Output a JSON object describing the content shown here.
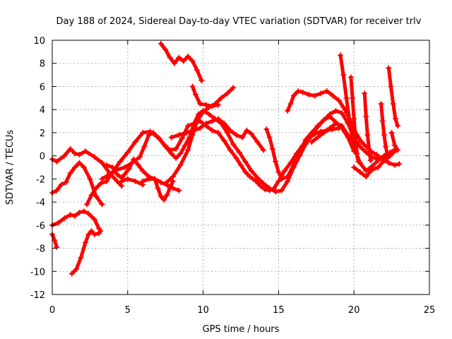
{
  "chart_data": {
    "type": "scatter",
    "title": "Day 188 of 2024, Sidereal Day-to-day VTEC variation (SDTVAR) for receiver trlv",
    "xlabel": "GPS time / hours",
    "ylabel": "SDTVAR / TECUs",
    "xlim": [
      0,
      25
    ],
    "ylim": [
      -12,
      10
    ],
    "xticks": [
      0,
      5,
      10,
      15,
      20,
      25
    ],
    "yticks": [
      -12,
      -10,
      -8,
      -6,
      -4,
      -2,
      0,
      2,
      4,
      6,
      8,
      10
    ],
    "grid": true,
    "marker": "plus",
    "color": "#ff0000",
    "series": [
      {
        "x": [
          0,
          0.3,
          0.8,
          1.2,
          1.5,
          1.8,
          2.2,
          2.8,
          3.3,
          3.8,
          4.3,
          4.6
        ],
        "y": [
          -0.3,
          -0.5,
          0,
          0.6,
          0.2,
          0.1,
          0.4,
          -0.1,
          -0.6,
          -1.5,
          -2.2,
          -2.6
        ]
      },
      {
        "x": [
          0,
          0.3,
          0.6,
          0.9,
          1.2,
          1.5,
          1.8,
          2.1,
          2.5,
          2.9,
          3.3
        ],
        "y": [
          -3.2,
          -3,
          -2.5,
          -2.3,
          -1.5,
          -1,
          -0.6,
          -1,
          -2,
          -3.5,
          -4.2
        ]
      },
      {
        "x": [
          0,
          0.4,
          0.8,
          1.2,
          1.5,
          1.8,
          2.1,
          2.4,
          2.8,
          3.1
        ],
        "y": [
          -6,
          -5.8,
          -5.4,
          -5.1,
          -5.2,
          -4.9,
          -4.8,
          -5,
          -5.5,
          -6.3
        ]
      },
      {
        "x": [
          0,
          0.15,
          0.3
        ],
        "y": [
          -6.8,
          -7.3,
          -7.9
        ]
      },
      {
        "x": [
          1.3,
          1.6,
          1.9,
          2.2,
          2.4,
          2.6,
          2.8,
          3.1,
          3.2
        ],
        "y": [
          -10.2,
          -9.8,
          -8.8,
          -7.5,
          -6.8,
          -6.5,
          -6.8,
          -6.7,
          -6.5
        ]
      },
      {
        "x": [
          2.3,
          2.6,
          2.9,
          3.2,
          3.6,
          4.0,
          4.5,
          5.0,
          5.5,
          6.0,
          6.5,
          7.0,
          7.4,
          7.8,
          8.2,
          8.6,
          9.0,
          9.4,
          9.8,
          10.2,
          10.6,
          11.0,
          11.4,
          11.8,
          12.2,
          12.5,
          12.8,
          13.1,
          13.5,
          13.8,
          14.1,
          14.4,
          14.7,
          15.0,
          15.4,
          15.8,
          16.2,
          16.6,
          17.0,
          17.4,
          17.8,
          18.2,
          18.6,
          19.0
        ],
        "y": [
          -4.2,
          -3.4,
          -2.8,
          -2.4,
          -2.2,
          -1.4,
          -0.5,
          0.3,
          1.2,
          2.0,
          2.1,
          1.6,
          1.0,
          0.5,
          0.6,
          1.5,
          2.6,
          2.8,
          3.0,
          2.6,
          2.2,
          2.0,
          1.3,
          0.5,
          -0.2,
          -0.8,
          -1.4,
          -1.8,
          -2.2,
          -2.6,
          -2.9,
          -3.0,
          -2.8,
          -2.2,
          -1.3,
          -0.6,
          0.2,
          0.9,
          1.5,
          1.9,
          2.1,
          2.2,
          2.3,
          2.4
        ]
      },
      {
        "x": [
          3.3,
          3.8,
          4.3,
          4.8,
          5.3,
          5.8,
          6.1,
          6.4,
          6.7,
          7.1,
          7.5,
          7.9,
          8.2,
          8.5,
          8.8,
          9.1,
          9.4,
          9.7,
          10.0,
          10.4,
          10.8,
          11.2,
          11.6,
          12.0,
          12.4,
          12.8,
          13.2,
          13.6,
          14.0,
          14.4,
          14.8,
          15.2,
          15.6,
          16.0,
          16.4,
          16.8,
          17.2,
          17.6,
          18.0,
          18.4,
          18.8,
          19.2,
          19.6,
          20.0,
          20.4,
          20.8,
          21.2,
          21.6,
          22.0,
          22.4,
          22.8
        ],
        "y": [
          -2.0,
          -1.6,
          -1.2,
          -1.0,
          -0.6,
          -0.1,
          0.8,
          1.8,
          2.0,
          1.5,
          0.8,
          0.2,
          -0.2,
          0.2,
          0.9,
          1.6,
          2.8,
          3.6,
          3.9,
          3.6,
          3.2,
          2.8,
          2.0,
          1.0,
          0.3,
          -0.5,
          -1.3,
          -1.9,
          -2.4,
          -2.8,
          -3.1,
          -3.0,
          -2.2,
          -1.0,
          0.0,
          1.0,
          1.8,
          2.5,
          3.1,
          3.6,
          3.9,
          3.7,
          2.8,
          1.6,
          0.8,
          0.3,
          -0.1,
          -0.3,
          0.0,
          0.3,
          0.6
        ]
      },
      {
        "x": [
          3.6,
          4.0,
          4.3,
          4.6,
          4.8,
          5.1,
          5.4,
          5.7,
          6.0,
          6.4,
          6.8,
          7.2,
          7.6,
          8.0,
          8.4
        ],
        "y": [
          -0.8,
          -1.0,
          -1.6,
          -1.9,
          -1.6,
          -1.1,
          -0.3,
          -0.8,
          -1.3,
          -1.8,
          -2.0,
          -2.3,
          -2.5,
          -2.8,
          -3.0
        ]
      },
      {
        "x": [
          4.6,
          5.0,
          5.5,
          6.0
        ],
        "y": [
          -2.2,
          -2.0,
          -2.2,
          -2.5
        ]
      },
      {
        "x": [
          6.0,
          6.4,
          6.8,
          7.0,
          7.2,
          7.4,
          7.6,
          7.8,
          8.0
        ],
        "y": [
          -2.2,
          -2.0,
          -2.0,
          -2.8,
          -3.5,
          -3.8,
          -3.4,
          -2.8,
          -2.2
        ]
      },
      {
        "x": [
          7.5,
          8.0,
          8.5,
          9.0,
          9.3,
          9.6,
          10.0,
          10.4,
          10.8,
          11.2,
          11.6,
          12.0
        ],
        "y": [
          -2.4,
          -1.8,
          -0.8,
          0.5,
          1.8,
          3.0,
          3.8,
          4.2,
          4.5,
          5.0,
          5.4,
          5.9
        ]
      },
      {
        "x": [
          7.2,
          7.5,
          7.8,
          8.1,
          8.4,
          8.7,
          9.0,
          9.3,
          9.6,
          9.9
        ],
        "y": [
          9.7,
          9.2,
          8.5,
          8.0,
          8.5,
          8.2,
          8.6,
          8.2,
          7.4,
          6.5
        ]
      },
      {
        "x": [
          9.3,
          9.5,
          9.8,
          10.2,
          10.6,
          11.0
        ],
        "y": [
          6.0,
          5.3,
          4.5,
          4.4,
          4.3,
          4.4
        ]
      },
      {
        "x": [
          7.9,
          8.4,
          8.9,
          9.4,
          9.8,
          10.2,
          10.6,
          11.0,
          11.4,
          11.8,
          12.2,
          12.6,
          12.9,
          13.2,
          13.6,
          14.0
        ],
        "y": [
          1.6,
          1.8,
          2.0,
          2.2,
          2.4,
          2.8,
          3.0,
          3.2,
          2.8,
          2.2,
          1.8,
          1.6,
          2.2,
          1.9,
          1.2,
          0.5
        ]
      },
      {
        "x": [
          15.6,
          15.8,
          16.0,
          16.3,
          16.6,
          17.0,
          17.4,
          17.8,
          18.2,
          18.6,
          19.0,
          19.3,
          19.6,
          19.9,
          20.2,
          20.5,
          20.8,
          21.1,
          21.5,
          21.9,
          22.3,
          22.7,
          23.0
        ],
        "y": [
          3.9,
          4.5,
          5.2,
          5.6,
          5.5,
          5.3,
          5.2,
          5.4,
          5.6,
          5.2,
          4.8,
          4.2,
          3.5,
          2.6,
          1.8,
          1.2,
          0.8,
          0.4,
          0.1,
          -0.3,
          -0.6,
          -0.8,
          -0.7
        ]
      },
      {
        "x": [
          14.2,
          14.4,
          14.6,
          14.8,
          15.0,
          15.2,
          15.6,
          16.0,
          16.4,
          16.8,
          17.2,
          17.6,
          18.0,
          18.4,
          18.8,
          19.2,
          19.6,
          20.0
        ],
        "y": [
          2.3,
          1.6,
          0.6,
          -0.5,
          -1.4,
          -2.0,
          -1.8,
          -0.8,
          0.3,
          1.4,
          2.0,
          2.6,
          3.1,
          3.4,
          2.9,
          2.4,
          1.6,
          0.4
        ]
      },
      {
        "x": [
          17.2,
          17.6,
          18.0,
          18.4,
          18.8,
          19.2,
          19.6,
          20.0,
          20.4,
          20.8,
          21.2,
          21.6,
          22.0,
          22.4,
          22.8
        ],
        "y": [
          1.2,
          1.6,
          2.0,
          2.4,
          2.8,
          2.6,
          1.8,
          0.8,
          -0.6,
          -1.3,
          -0.9,
          -0.4,
          -0.1,
          0.2,
          0.6
        ]
      },
      {
        "x": [
          19.1,
          19.3,
          19.5,
          19.7,
          19.9,
          20.1,
          20.3
        ],
        "y": [
          8.7,
          7.0,
          5.0,
          3.0,
          1.5,
          0.5,
          -0.5
        ]
      },
      {
        "x": [
          19.8,
          19.9,
          20.0,
          20.1,
          20.2
        ],
        "y": [
          6.8,
          5.0,
          3.2,
          1.6,
          0.2
        ]
      },
      {
        "x": [
          20.7,
          20.8,
          20.9,
          21.0,
          21.1
        ],
        "y": [
          5.4,
          3.4,
          1.8,
          0.6,
          -0.4
        ]
      },
      {
        "x": [
          21.8,
          21.9,
          22.0,
          22.1,
          22.2
        ],
        "y": [
          4.5,
          3.0,
          1.8,
          0.8,
          0.2
        ]
      },
      {
        "x": [
          22.3,
          22.45,
          22.6,
          22.75,
          22.9
        ],
        "y": [
          7.6,
          6.0,
          4.5,
          3.2,
          2.6
        ]
      },
      {
        "x": [
          22.5,
          22.7,
          22.9
        ],
        "y": [
          2.0,
          0.9,
          0.5
        ]
      },
      {
        "x": [
          20.0,
          20.4,
          20.8,
          21.2,
          21.6,
          22.0,
          22.4,
          22.8
        ],
        "y": [
          -1.0,
          -1.4,
          -1.8,
          -1.2,
          -1.0,
          -0.4,
          0.0,
          0.5
        ]
      }
    ]
  }
}
